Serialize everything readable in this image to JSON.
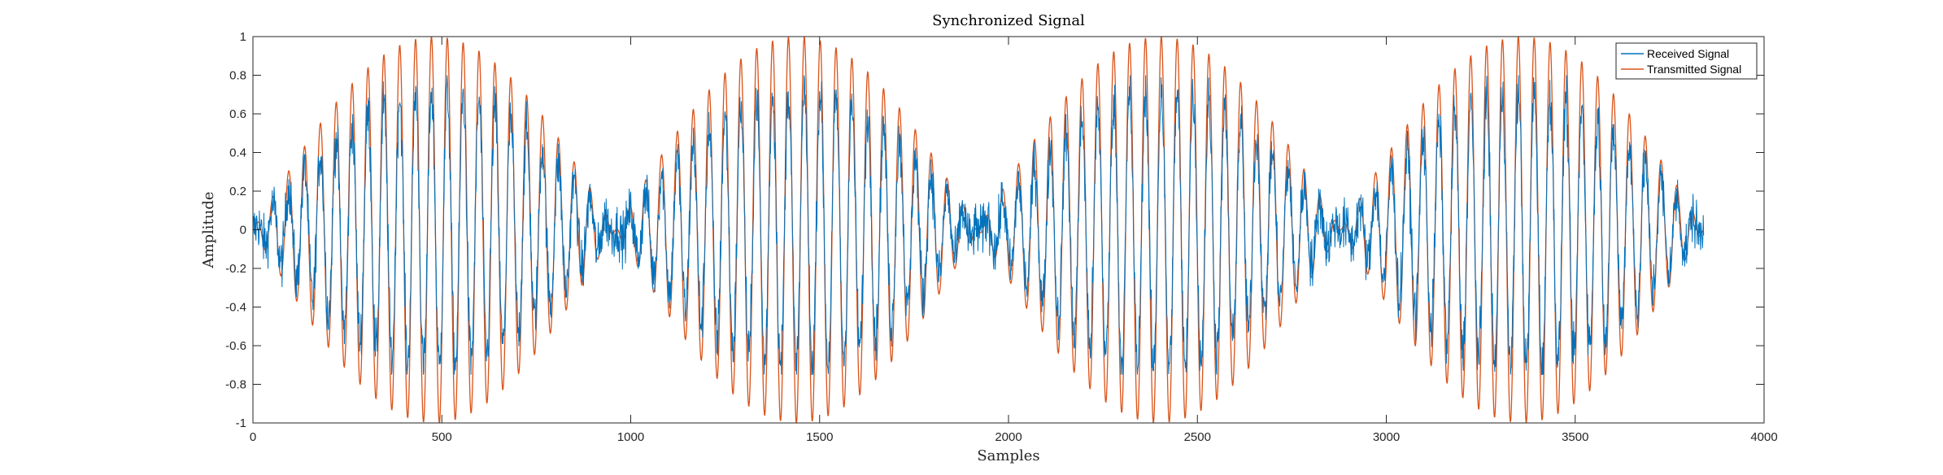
{
  "chart_data": {
    "type": "line",
    "title": "Synchronized Signal",
    "xlabel": "Samples",
    "ylabel": "Amplitude",
    "xlim": [
      0,
      4000
    ],
    "ylim": [
      -1,
      1
    ],
    "xticks": [
      0,
      500,
      1000,
      1500,
      2000,
      2500,
      3000,
      3500,
      4000
    ],
    "yticks": [
      -1,
      -0.8,
      -0.6,
      -0.4,
      -0.2,
      0,
      0.2,
      0.4,
      0.6,
      0.8,
      1
    ],
    "xtick_labels": [
      "0",
      "500",
      "1000",
      "1500",
      "2000",
      "2500",
      "3000",
      "3500",
      "4000"
    ],
    "ytick_labels": [
      "-1",
      "-0.8",
      "-0.6",
      "-0.4",
      "-0.2",
      "0",
      "0.2",
      "0.4",
      "0.6",
      "0.8",
      "1"
    ],
    "grid": false,
    "legend_position": "top-right",
    "series": [
      {
        "name": "Received Signal",
        "color": "#0072BD",
        "x_range": [
          0,
          3840
        ],
        "envelope_peak": 0.72,
        "noise_level": 0.12,
        "description_values": "noisy, attenuated copy of the transmitted signal"
      },
      {
        "name": "Transmitted Signal",
        "color": "#D95319",
        "x_range": [
          0,
          3840
        ],
        "envelope_peak": 1.0,
        "envelope_nulls": [
          0,
          960,
          1920,
          2880,
          3840
        ],
        "carrier_period_samples": 42
      }
    ]
  }
}
